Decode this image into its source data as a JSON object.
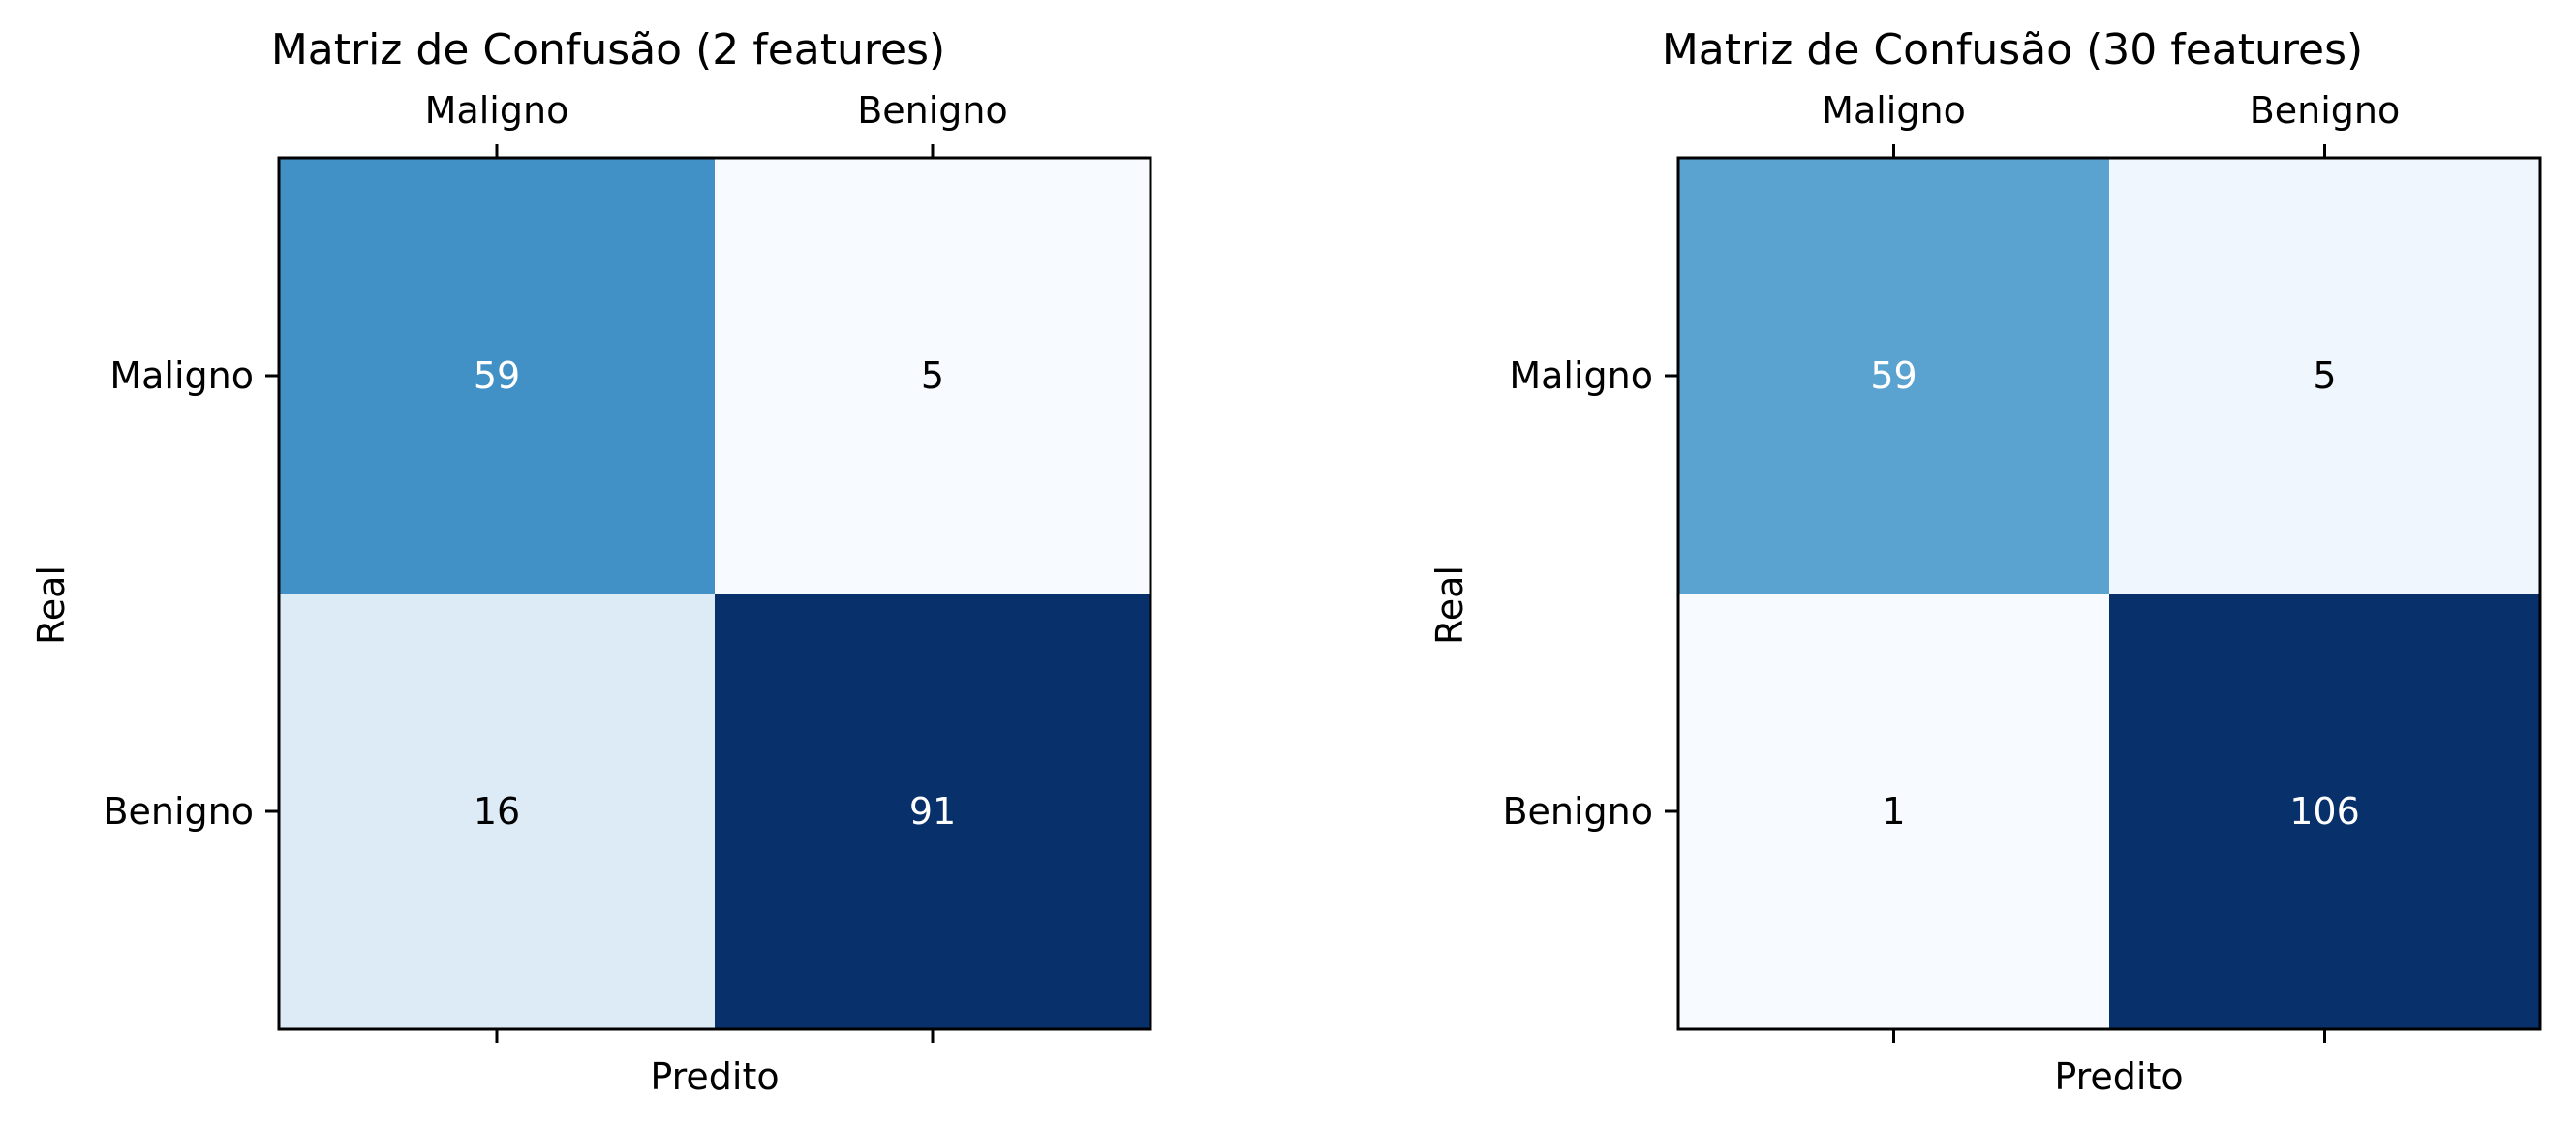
{
  "chart_data": [
    {
      "type": "heatmap",
      "title": "Matriz de Confusão (2 features)",
      "xlabel": "Predito",
      "ylabel": "Real",
      "x_categories": [
        "Maligno",
        "Benigno"
      ],
      "y_categories": [
        "Maligno",
        "Benigno"
      ],
      "values": [
        [
          59,
          5
        ],
        [
          16,
          91
        ]
      ],
      "colormap": "Blues",
      "x_tick_position": "top",
      "grid": false
    },
    {
      "type": "heatmap",
      "title": "Matriz de Confusão (30 features)",
      "xlabel": "Predito",
      "ylabel": "Real",
      "x_categories": [
        "Maligno",
        "Benigno"
      ],
      "y_categories": [
        "Maligno",
        "Benigno"
      ],
      "values": [
        [
          59,
          5
        ],
        [
          1,
          106
        ]
      ],
      "colormap": "Blues",
      "x_tick_position": "top",
      "grid": false
    }
  ]
}
